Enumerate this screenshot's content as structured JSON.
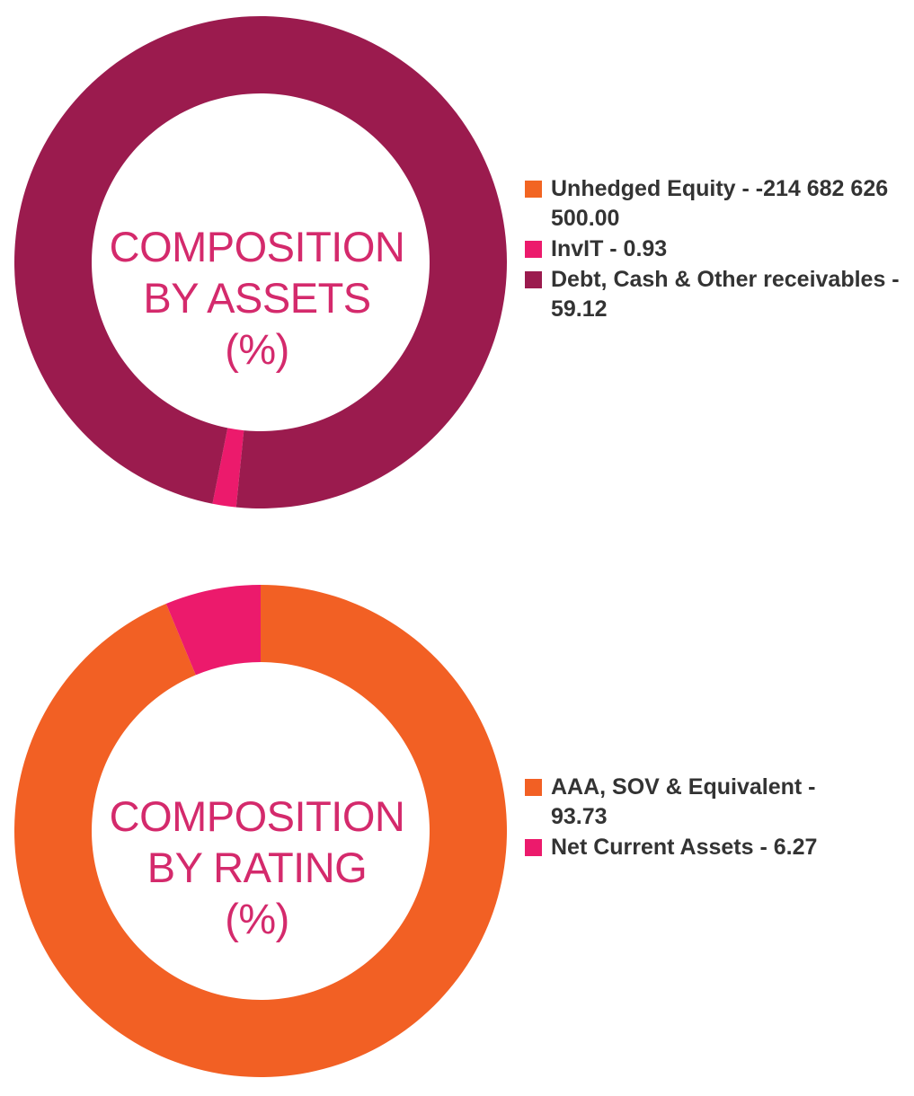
{
  "chart_data": [
    {
      "type": "pie",
      "variant": "donut",
      "center_label_lines": [
        "COMPOSITION",
        "BY ASSETS",
        "(%)"
      ],
      "series": [
        {
          "name": "Unhedged Equity",
          "label": "Unhedged Equity - -214 682 626 500.00",
          "value": -214682626500.0,
          "color": "#f26522"
        },
        {
          "name": "InvIT",
          "label": "InvIT - 0.93",
          "value": 0.93,
          "color": "#ec1a6c"
        },
        {
          "name": "Debt, Cash & Other receivables",
          "label": "Debt, Cash & Other receivables - 59.12",
          "value": 59.12,
          "color": "#9b1b4e"
        }
      ],
      "legend_placement": "right"
    },
    {
      "type": "pie",
      "variant": "donut",
      "center_label_lines": [
        "COMPOSITION",
        "BY RATING",
        "(%)"
      ],
      "series": [
        {
          "name": "AAA, SOV & Equivalent",
          "label": "AAA, SOV & Equivalent - 93.73",
          "value": 93.73,
          "color": "#f26024"
        },
        {
          "name": "Net Current Assets",
          "label": "Net Current Assets - 6.27",
          "value": 6.27,
          "color": "#ec1a6c"
        }
      ],
      "legend_placement": "right"
    }
  ]
}
